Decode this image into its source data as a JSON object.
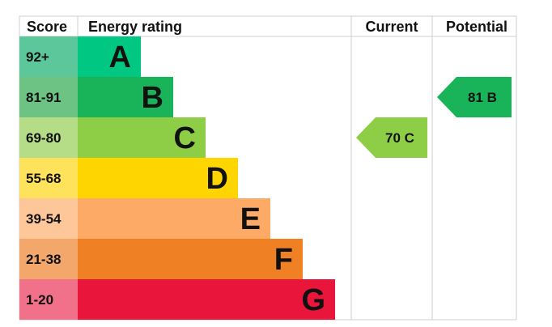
{
  "header": {
    "score": "Score",
    "energy_rating": "Energy rating",
    "current": "Current",
    "potential": "Potential"
  },
  "chart_data": {
    "type": "bar",
    "bands": [
      {
        "letter": "A",
        "range": "92+",
        "band_color": "#00c781",
        "score_color": "#5bc79b"
      },
      {
        "letter": "B",
        "range": "81-91",
        "band_color": "#19b459",
        "score_color": "#6dc383"
      },
      {
        "letter": "C",
        "range": "69-80",
        "band_color": "#8dce46",
        "score_color": "#b5dc86"
      },
      {
        "letter": "D",
        "range": "55-68",
        "band_color": "#ffd500",
        "score_color": "#ffe25c"
      },
      {
        "letter": "E",
        "range": "39-54",
        "band_color": "#fcaa65",
        "score_color": "#fdc799"
      },
      {
        "letter": "F",
        "range": "21-38",
        "band_color": "#ef8023",
        "score_color": "#f4a76b"
      },
      {
        "letter": "G",
        "range": "1-20",
        "band_color": "#e9153b",
        "score_color": "#f1708a"
      }
    ],
    "current": {
      "value": 70,
      "letter": "C",
      "label": "70  C",
      "color": "#8dce46"
    },
    "potential": {
      "value": 81,
      "letter": "B",
      "label": "81  B",
      "color": "#19b459"
    }
  }
}
